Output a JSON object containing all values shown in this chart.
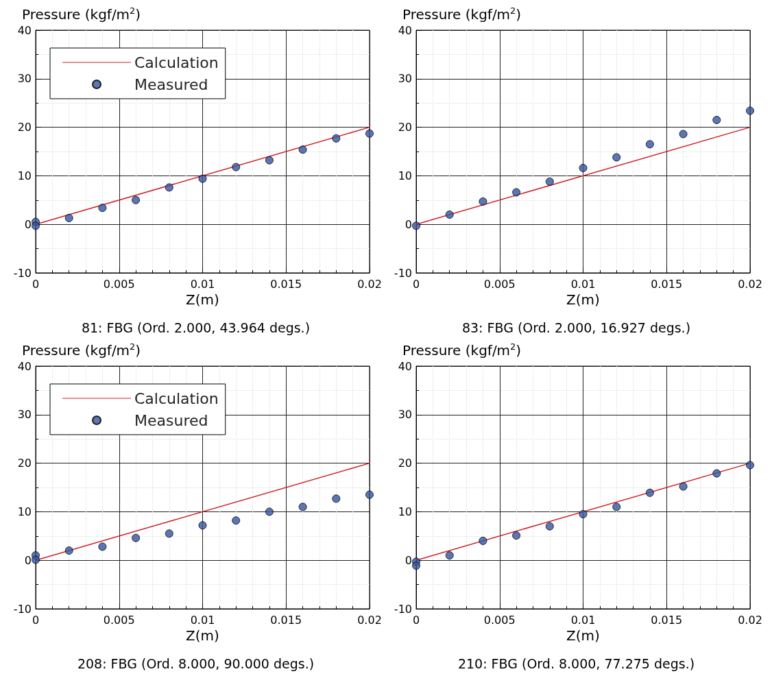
{
  "chart_data": [
    {
      "type": "scatter",
      "title": "81: FBG (Ord. 2.000, 43.964 degs.)",
      "xlabel": "Z(m)",
      "ylabel": "Pressure (kgf/m$^{2}$)",
      "xlim": [
        0,
        0.02
      ],
      "xticks": [
        0,
        0.005,
        0.01,
        0.015,
        0.02
      ],
      "ylim": [
        -10,
        40
      ],
      "yticks": [
        -10,
        0,
        10,
        20,
        30,
        40
      ],
      "grid": true,
      "legend": "top left",
      "series": [
        {
          "name": "Calculation",
          "type": "line",
          "color": "#d0202a",
          "line_style": "solid",
          "marker": "none",
          "x": [
            0,
            0.02
          ],
          "values": [
            0,
            20
          ]
        },
        {
          "name": "Measured",
          "color": "#3355a0",
          "marker": "circle",
          "x": [
            0,
            0,
            0.002,
            0.004,
            0.006,
            0.008,
            0.01,
            0.012,
            0.014,
            0.016,
            0.018,
            0.02
          ],
          "values": [
            0.5,
            -0.3,
            1.3,
            3.4,
            5.0,
            7.6,
            9.4,
            11.8,
            13.2,
            15.4,
            17.7,
            18.7
          ]
        }
      ]
    },
    {
      "type": "scatter",
      "title": "83: FBG (Ord. 2.000, 16.927 degs.)",
      "xlabel": "Z(m)",
      "ylabel": "Pressure (kgf/m$^{2}$)",
      "xlim": [
        0,
        0.02
      ],
      "xticks": [
        0,
        0.005,
        0.01,
        0.015,
        0.02
      ],
      "ylim": [
        -10,
        40
      ],
      "yticks": [
        -10,
        0,
        10,
        20,
        30,
        40
      ],
      "grid": true,
      "legend": false,
      "series": [
        {
          "type": "line",
          "color": "#d0202a",
          "line_style": "solid",
          "marker": "none",
          "x": [
            0,
            0.02
          ],
          "values": [
            0,
            20
          ]
        },
        {
          "color": "#3355a0",
          "marker": "circle",
          "x": [
            0,
            0.002,
            0.004,
            0.006,
            0.008,
            0.01,
            0.012,
            0.014,
            0.016,
            0.018,
            0.02
          ],
          "values": [
            -0.3,
            2.0,
            4.7,
            6.6,
            8.8,
            11.6,
            13.8,
            16.5,
            18.6,
            21.5,
            23.4
          ]
        }
      ]
    },
    {
      "type": "scatter",
      "title": "208: FBG (Ord. 8.000, 90.000 degs.)",
      "xlabel": "Z(m)",
      "ylabel": "Pressure (kgf/m$^{2}$)",
      "xlim": [
        0,
        0.02
      ],
      "xticks": [
        0,
        0.005,
        0.01,
        0.015,
        0.02
      ],
      "ylim": [
        -10,
        40
      ],
      "yticks": [
        -10,
        0,
        10,
        20,
        30,
        40
      ],
      "grid": true,
      "legend": "top left",
      "series": [
        {
          "name": "Calculation",
          "type": "line",
          "color": "#d0202a",
          "line_style": "solid",
          "marker": "none",
          "x": [
            0,
            0.02
          ],
          "values": [
            0,
            20
          ]
        },
        {
          "name": "Measured",
          "color": "#3355a0",
          "marker": "circle",
          "x": [
            0,
            0,
            0.002,
            0.004,
            0.006,
            0.008,
            0.01,
            0.012,
            0.014,
            0.016,
            0.018,
            0.02
          ],
          "values": [
            1.0,
            0.1,
            2.0,
            2.8,
            4.6,
            5.5,
            7.2,
            8.2,
            10.0,
            11.0,
            12.7,
            13.5
          ]
        }
      ]
    },
    {
      "type": "scatter",
      "title": "210: FBG (Ord. 8.000, 77.275 degs.)",
      "xlabel": "Z(m)",
      "ylabel": "Pressure (kgf/m$^{2}$)",
      "xlim": [
        0,
        0.02
      ],
      "xticks": [
        0,
        0.005,
        0.01,
        0.015,
        0.02
      ],
      "ylim": [
        -10,
        40
      ],
      "yticks": [
        -10,
        0,
        10,
        20,
        30,
        40
      ],
      "grid": true,
      "legend": false,
      "series": [
        {
          "type": "line",
          "color": "#d0202a",
          "line_style": "solid",
          "marker": "none",
          "x": [
            0,
            0.02
          ],
          "values": [
            0,
            20
          ]
        },
        {
          "color": "#3355a0",
          "marker": "circle",
          "x": [
            0,
            0,
            0.002,
            0.004,
            0.006,
            0.008,
            0.01,
            0.012,
            0.014,
            0.016,
            0.018,
            0.02
          ],
          "values": [
            -0.3,
            -1.1,
            1.0,
            4.0,
            5.1,
            7.0,
            9.5,
            11.0,
            13.9,
            15.2,
            17.9,
            19.6
          ]
        }
      ]
    }
  ]
}
